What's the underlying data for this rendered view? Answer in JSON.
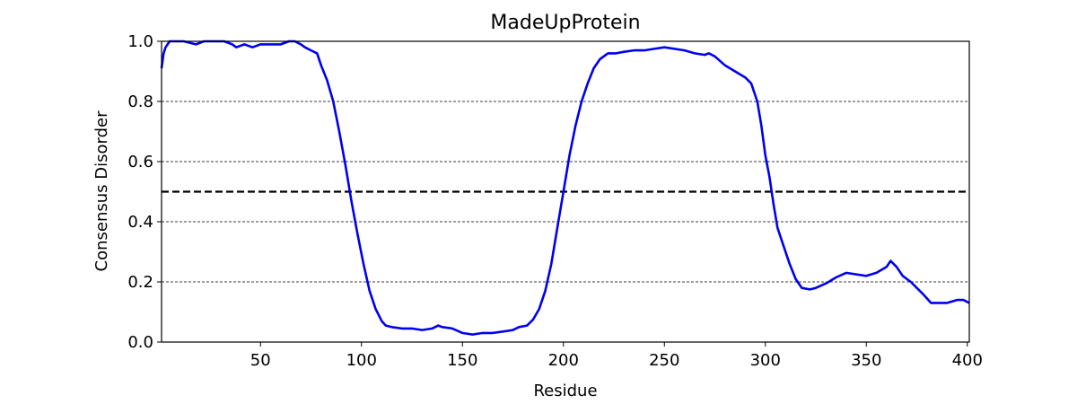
{
  "chart_data": {
    "type": "line",
    "title": "MadeUpProtein",
    "xlabel": "Residue",
    "ylabel": "Consensus Disorder",
    "xlim": [
      1,
      401
    ],
    "ylim": [
      0.0,
      1.0
    ],
    "x_ticks": [
      50,
      100,
      150,
      200,
      250,
      300,
      350,
      400
    ],
    "x_tick_labels": [
      "50",
      "100",
      "150",
      "200",
      "250",
      "300",
      "350",
      "400"
    ],
    "y_ticks": [
      0.0,
      0.2,
      0.4,
      0.6,
      0.8,
      1.0
    ],
    "y_tick_labels": [
      "0.0",
      "0.2",
      "0.4",
      "0.6",
      "0.8",
      "1.0"
    ],
    "grid": {
      "axis": "y",
      "style": "dashed",
      "color": "#000000"
    },
    "threshold": {
      "y": 0.5,
      "style": "dashed",
      "color": "#000000"
    },
    "series": [
      {
        "name": "Consensus Disorder",
        "color": "#0000ee",
        "x": [
          1,
          2,
          3,
          5,
          8,
          12,
          18,
          22,
          25,
          28,
          32,
          36,
          38,
          42,
          46,
          50,
          55,
          60,
          64,
          67,
          70,
          72,
          75,
          78,
          80,
          83,
          86,
          89,
          92,
          95,
          98,
          101,
          104,
          107,
          110,
          112,
          115,
          120,
          125,
          130,
          135,
          138,
          140,
          145,
          150,
          155,
          160,
          165,
          170,
          175,
          178,
          182,
          185,
          188,
          191,
          194,
          197,
          200,
          203,
          206,
          209,
          212,
          215,
          218,
          222,
          226,
          230,
          235,
          240,
          245,
          250,
          255,
          260,
          265,
          270,
          272,
          275,
          280,
          285,
          290,
          293,
          296,
          298,
          300,
          302,
          304,
          306,
          309,
          312,
          315,
          318,
          322,
          325,
          330,
          335,
          340,
          345,
          350,
          355,
          360,
          362,
          365,
          368,
          372,
          375,
          378,
          382,
          386,
          390,
          395,
          398,
          401
        ],
        "y": [
          0.91,
          0.96,
          0.98,
          1.0,
          1.0,
          1.0,
          0.99,
          1.0,
          1.0,
          1.0,
          1.0,
          0.99,
          0.98,
          0.99,
          0.98,
          0.99,
          0.99,
          0.99,
          1.0,
          1.0,
          0.99,
          0.98,
          0.97,
          0.96,
          0.92,
          0.87,
          0.8,
          0.7,
          0.59,
          0.47,
          0.36,
          0.26,
          0.17,
          0.11,
          0.07,
          0.055,
          0.05,
          0.045,
          0.045,
          0.04,
          0.045,
          0.055,
          0.05,
          0.045,
          0.03,
          0.025,
          0.03,
          0.03,
          0.035,
          0.04,
          0.05,
          0.055,
          0.075,
          0.11,
          0.17,
          0.26,
          0.38,
          0.5,
          0.62,
          0.72,
          0.8,
          0.86,
          0.91,
          0.94,
          0.96,
          0.96,
          0.965,
          0.97,
          0.97,
          0.975,
          0.98,
          0.975,
          0.97,
          0.96,
          0.955,
          0.96,
          0.95,
          0.92,
          0.9,
          0.88,
          0.86,
          0.8,
          0.72,
          0.62,
          0.55,
          0.46,
          0.38,
          0.32,
          0.26,
          0.21,
          0.18,
          0.175,
          0.18,
          0.195,
          0.215,
          0.23,
          0.225,
          0.22,
          0.23,
          0.25,
          0.27,
          0.25,
          0.22,
          0.2,
          0.18,
          0.16,
          0.13,
          0.13,
          0.13,
          0.14,
          0.14,
          0.13
        ]
      }
    ]
  }
}
